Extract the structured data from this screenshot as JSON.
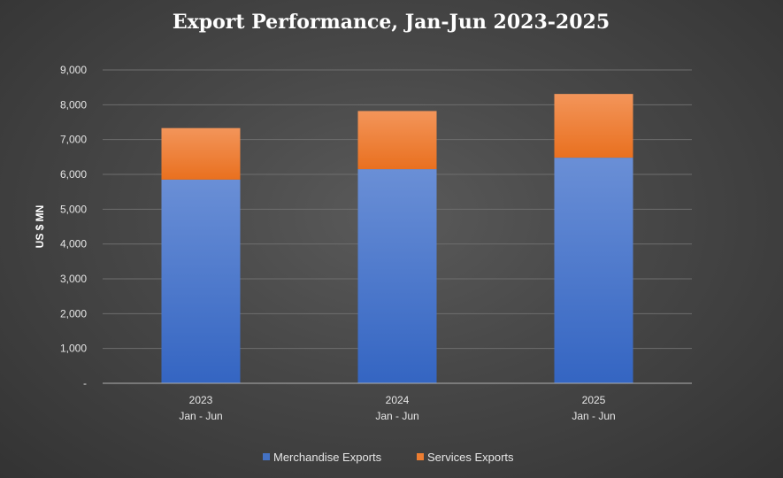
{
  "chart_data": {
    "type": "bar",
    "stacked": true,
    "title": "Export Performance, Jan-Jun 2023-2025",
    "ylabel": "US $ MN",
    "xlabel": "",
    "categories": [
      {
        "line1": "2023",
        "line2": "Jan - Jun"
      },
      {
        "line1": "2024",
        "line2": "Jan - Jun"
      },
      {
        "line1": "2025",
        "line2": "Jan - Jun"
      }
    ],
    "series": [
      {
        "name": "Merchandise Exports",
        "color": "#4472c4",
        "values": [
          5850,
          6150,
          6480
        ]
      },
      {
        "name": "Services Exports",
        "color": "#ed7d31",
        "values": [
          1480,
          1670,
          1830
        ]
      }
    ],
    "ylim": [
      0,
      9000
    ],
    "yticks": [
      {
        "value": 0,
        "label": "-"
      },
      {
        "value": 1000,
        "label": "1,000"
      },
      {
        "value": 2000,
        "label": "2,000"
      },
      {
        "value": 3000,
        "label": "3,000"
      },
      {
        "value": 4000,
        "label": "4,000"
      },
      {
        "value": 5000,
        "label": "5,000"
      },
      {
        "value": 6000,
        "label": "6,000"
      },
      {
        "value": 7000,
        "label": "7,000"
      },
      {
        "value": 8000,
        "label": "8,000"
      },
      {
        "value": 9000,
        "label": "9,000"
      }
    ],
    "grid": true,
    "legend_position": "bottom"
  }
}
